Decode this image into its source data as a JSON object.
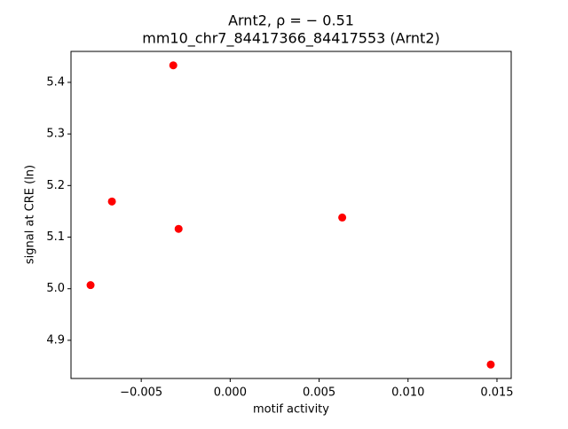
{
  "chart_data": {
    "type": "scatter",
    "title": "Arnt2, ρ = − 0.51",
    "subtitle": "mm10_chr7_84417366_84417553 (Arnt2)",
    "x_label": "motif activity",
    "y_label": "signal at CRE (ln)",
    "color": "#ff0000",
    "x": [
      -0.00785,
      -0.00665,
      -0.0032,
      -0.0029,
      0.0063,
      0.01465
    ],
    "values": [
      5.007,
      5.169,
      5.433,
      5.116,
      5.138,
      4.853
    ],
    "xlim": [
      -0.00895,
      0.0158
    ],
    "ylim": [
      4.826,
      5.46
    ],
    "xticks": [
      {
        "value": -0.005,
        "label": "−0.005"
      },
      {
        "value": 0,
        "label": "0.000"
      },
      0.005,
      {
        "value": 0.01,
        "label": "0.010"
      },
      0.015
    ],
    "yticks": [
      4.9,
      {
        "value": 5,
        "label": "5.0"
      },
      5.1,
      5.2,
      5.3,
      5.4
    ],
    "grid": false
  }
}
